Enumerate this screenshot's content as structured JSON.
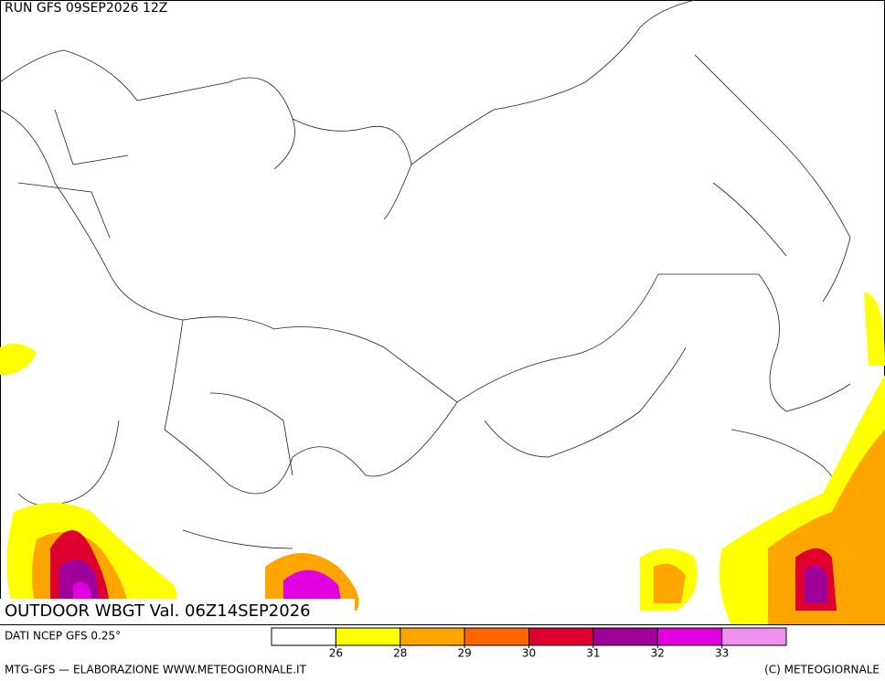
{
  "header": {
    "run": "RUN GFS 09SEP2026 12Z"
  },
  "map": {
    "title": "OUTDOOR WBGT Val. 06Z14SEP2026"
  },
  "legend": {
    "source": "DATI NCEP GFS 0.25°",
    "colors": [
      "#ffffff",
      "#ffff00",
      "#ffa500",
      "#ff6600",
      "#e00030",
      "#a0009a",
      "#e000e0",
      "#f090f0"
    ],
    "ticks": [
      26,
      28,
      29,
      30,
      31,
      32,
      33
    ]
  },
  "footer": {
    "left": "MTG-GFS — ELABORAZIONE WWW.METEOGIORNALE.IT",
    "right": "(C) METEOGIORNALE"
  }
}
